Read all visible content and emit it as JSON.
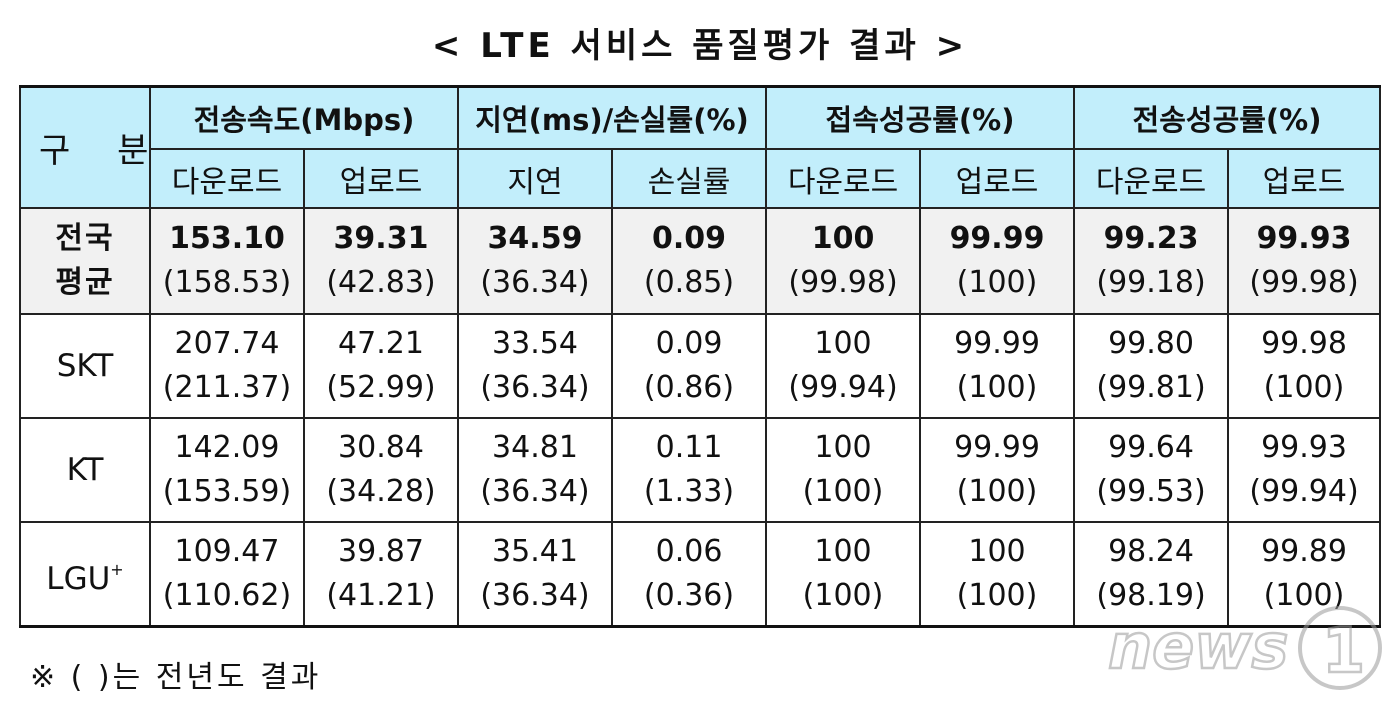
{
  "title": "< LTE 서비스 품질평가 결과 >",
  "header": {
    "gubun": "구 분",
    "groups": [
      "전송속도(Mbps)",
      "지연(ms)/손실률(%)",
      "접속성공률(%)",
      "전송성공률(%)"
    ],
    "subs": [
      "다운로드",
      "업로드",
      "지연",
      "손실률",
      "다운로드",
      "업로드",
      "다운로드",
      "업로드"
    ]
  },
  "rows": [
    {
      "label": [
        "전국",
        "평균"
      ],
      "current": [
        "153.10",
        "39.31",
        "34.59",
        "0.09",
        "100",
        "99.99",
        "99.23",
        "99.93"
      ],
      "previous": [
        "(158.53)",
        "(42.83)",
        "(36.34)",
        "(0.85)",
        "(99.98)",
        "(100)",
        "(99.18)",
        "(99.98)"
      ]
    },
    {
      "label": [
        "SKT"
      ],
      "current": [
        "207.74",
        "47.21",
        "33.54",
        "0.09",
        "100",
        "99.99",
        "99.80",
        "99.98"
      ],
      "previous": [
        "(211.37)",
        "(52.99)",
        "(36.34)",
        "(0.86)",
        "(99.94)",
        "(100)",
        "(99.81)",
        "(100)"
      ]
    },
    {
      "label": [
        "KT"
      ],
      "current": [
        "142.09",
        "30.84",
        "34.81",
        "0.11",
        "100",
        "99.99",
        "99.64",
        "99.93"
      ],
      "previous": [
        "(153.59)",
        "(34.28)",
        "(36.34)",
        "(1.33)",
        "(100)",
        "(100)",
        "(99.53)",
        "(99.94)"
      ]
    },
    {
      "label": [
        "LGU",
        "+"
      ],
      "current": [
        "109.47",
        "39.87",
        "35.41",
        "0.06",
        "100",
        "100",
        "98.24",
        "99.89"
      ],
      "previous": [
        "(110.62)",
        "(41.21)",
        "(36.34)",
        "(0.36)",
        "(100)",
        "(100)",
        "(98.19)",
        "(100)"
      ]
    }
  ],
  "note": "※ ( )는 전년도 결과",
  "watermark": {
    "text": "news1",
    "icon": "news1-logo"
  }
}
